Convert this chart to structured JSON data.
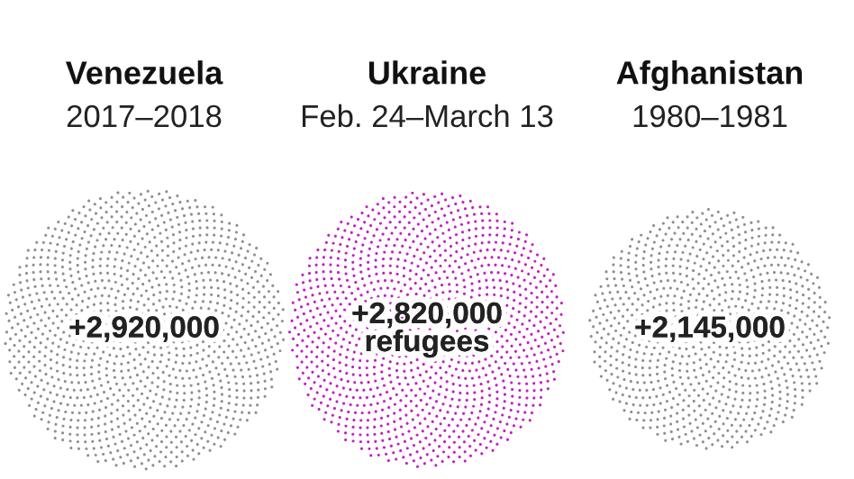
{
  "chart_data": {
    "type": "other",
    "categories": [
      "Venezuela",
      "Ukraine",
      "Afghanistan"
    ],
    "values": [
      2920000,
      2820000,
      2145000
    ],
    "value_labels": [
      "+2,920,000",
      "+2,820,000",
      "+2,145,000"
    ],
    "colors": [
      "#8f8f8f",
      "#c21fc4",
      "#8f8f8f"
    ],
    "annotations": [
      {
        "text": "2017–2018",
        "x": "Venezuela"
      },
      {
        "text": "Feb. 24–March 13",
        "x": "Ukraine"
      },
      {
        "text": "1980–1981",
        "x": "Afghanistan"
      },
      {
        "text": "refugees",
        "x": "Ukraine"
      }
    ]
  }
}
